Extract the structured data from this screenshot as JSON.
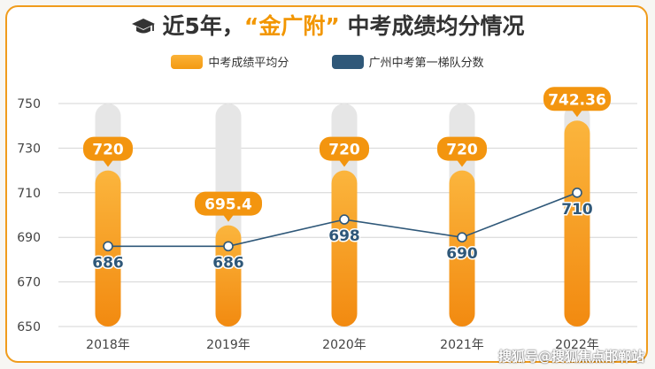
{
  "header": {
    "title_pre": "近5年，",
    "title_highlight": "“金广附”",
    "title_post": " 中考成绩均分情况"
  },
  "legend": [
    {
      "label": "中考成绩平均分",
      "color": "#f39a12"
    },
    {
      "label": "广州中考第一梯队分数",
      "color": "#2f5879"
    }
  ],
  "watermark": "搜狐号@搜狐焦点邯郸站",
  "chart_data": {
    "type": "bar",
    "categories": [
      "2018年",
      "2019年",
      "2020年",
      "2021年",
      "2022年"
    ],
    "series": [
      {
        "name": "中考成绩平均分",
        "type": "bar",
        "values": [
          720,
          695.4,
          720,
          720,
          742.36
        ],
        "labels": [
          "720",
          "695.4",
          "720",
          "720",
          "742.36"
        ]
      },
      {
        "name": "广州中考第一梯队分数",
        "type": "line",
        "values": [
          686,
          686,
          698,
          690,
          710
        ],
        "labels": [
          "686",
          "686",
          "698",
          "690",
          "710"
        ]
      }
    ],
    "yticks": [
      650,
      670,
      690,
      710,
      730,
      750
    ],
    "ylim": [
      650,
      750
    ],
    "grid": true,
    "legend_position": "top"
  }
}
